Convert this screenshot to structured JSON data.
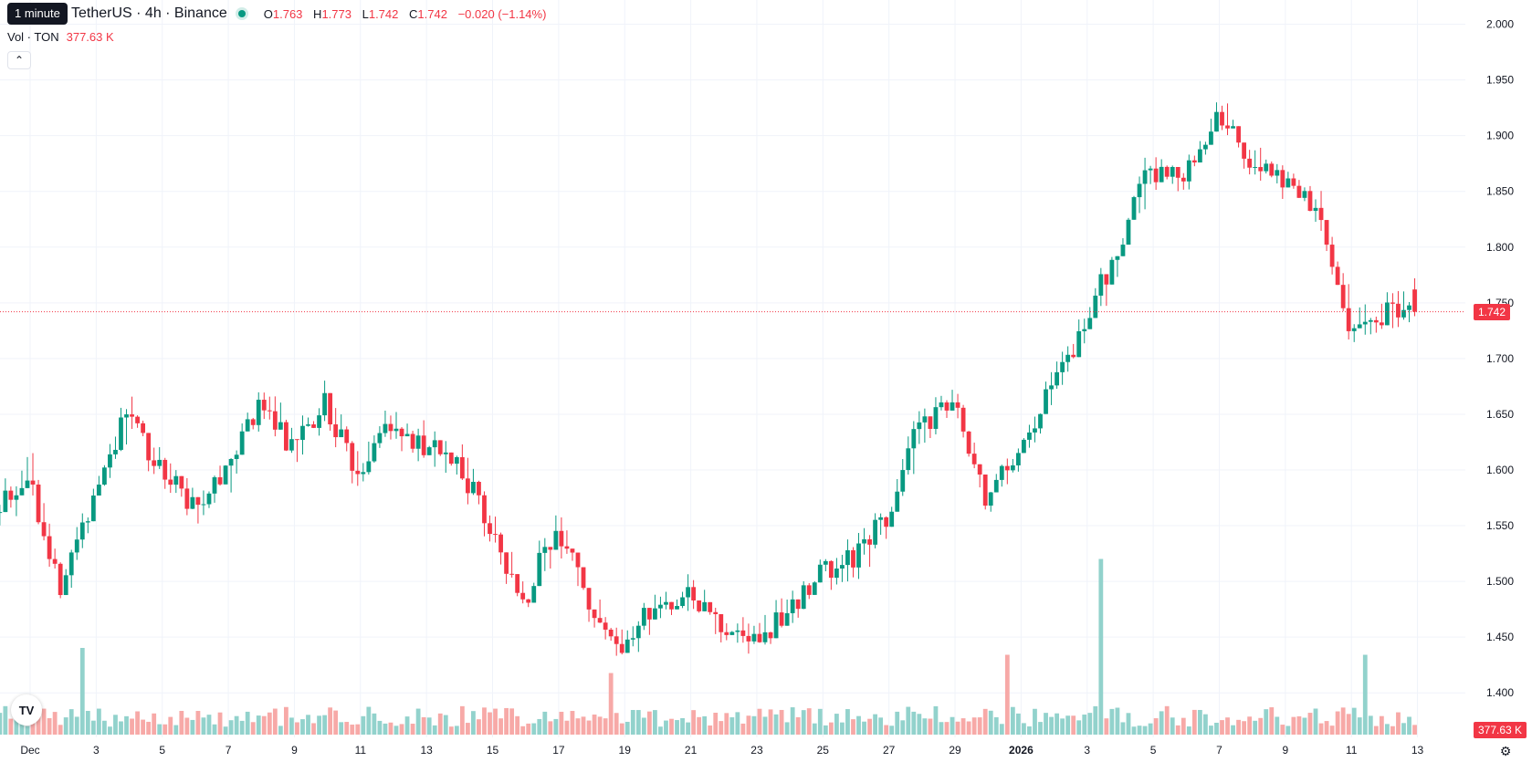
{
  "legend": {
    "tooltip": "1 minute",
    "symbol": "TetherUS · 4h · Binance",
    "ohlc": {
      "o_label": "O",
      "o": "1.763",
      "h_label": "H",
      "h": "1.773",
      "l_label": "L",
      "l": "1.742",
      "c_label": "C",
      "c": "1.742",
      "change": "−0.020 (−1.14%)"
    },
    "volume_label": "Vol · TON",
    "volume_value": "377.63 K"
  },
  "badges": {
    "last_price": "1.742",
    "last_volume": "377.63 K"
  },
  "colors": {
    "up": "#089981",
    "down": "#f23645",
    "up_volume": "#92d2cc",
    "down_volume": "#f7a9a7",
    "grid": "#f0f3fa"
  },
  "icons": {
    "collapse": "chevron-up-icon",
    "logo": "tradingview-logo-icon",
    "settings": "gear-icon"
  },
  "chart_data": {
    "type": "candlestick",
    "interval": "4h",
    "y_ticks": [
      "2.000",
      "1.950",
      "1.900",
      "1.850",
      "1.800",
      "1.750",
      "1.700",
      "1.650",
      "1.600",
      "1.550",
      "1.500",
      "1.450",
      "1.400"
    ],
    "ylim": [
      1.392,
      2.007
    ],
    "x_ticks": [
      "Dec",
      "3",
      "5",
      "7",
      "9",
      "11",
      "13",
      "15",
      "17",
      "19",
      "21",
      "23",
      "25",
      "27",
      "29",
      "2026",
      "3",
      "5",
      "7",
      "9",
      "11",
      "13"
    ],
    "last_price": 1.742,
    "daily_path": [
      {
        "date": "Nov 30",
        "close": 1.56
      },
      {
        "date": "Dec 1",
        "close": 1.6
      },
      {
        "date": "Dec 2",
        "close": 1.49
      },
      {
        "date": "Dec 3",
        "close": 1.58
      },
      {
        "date": "Dec 4",
        "close": 1.65
      },
      {
        "date": "Dec 5",
        "close": 1.6
      },
      {
        "date": "Dec 6",
        "close": 1.57
      },
      {
        "date": "Dec 7",
        "close": 1.6
      },
      {
        "date": "Dec 8",
        "close": 1.66
      },
      {
        "date": "Dec 9",
        "close": 1.62
      },
      {
        "date": "Dec 10",
        "close": 1.66
      },
      {
        "date": "Dec 11",
        "close": 1.6
      },
      {
        "date": "Dec 12",
        "close": 1.64
      },
      {
        "date": "Dec 13",
        "close": 1.62
      },
      {
        "date": "Dec 14",
        "close": 1.61
      },
      {
        "date": "Dec 15",
        "close": 1.55
      },
      {
        "date": "Dec 16",
        "close": 1.48
      },
      {
        "date": "Dec 17",
        "close": 1.55
      },
      {
        "date": "Dec 18",
        "close": 1.48
      },
      {
        "date": "Dec 19",
        "close": 1.44
      },
      {
        "date": "Dec 20",
        "close": 1.48
      },
      {
        "date": "Dec 21",
        "close": 1.49
      },
      {
        "date": "Dec 22",
        "close": 1.46
      },
      {
        "date": "Dec 23",
        "close": 1.45
      },
      {
        "date": "Dec 24",
        "close": 1.47
      },
      {
        "date": "Dec 25",
        "close": 1.51
      },
      {
        "date": "Dec 26",
        "close": 1.52
      },
      {
        "date": "Dec 27",
        "close": 1.56
      },
      {
        "date": "Dec 28",
        "close": 1.64
      },
      {
        "date": "Dec 29",
        "close": 1.66
      },
      {
        "date": "Dec 30",
        "close": 1.57
      },
      {
        "date": "Dec 31",
        "close": 1.62
      },
      {
        "date": "Jan 1",
        "close": 1.67
      },
      {
        "date": "Jan 2",
        "close": 1.73
      },
      {
        "date": "Jan 3",
        "close": 1.8
      },
      {
        "date": "Jan 4",
        "close": 1.87
      },
      {
        "date": "Jan 5",
        "close": 1.86
      },
      {
        "date": "Jan 6",
        "close": 1.92
      },
      {
        "date": "Jan 7",
        "close": 1.88
      },
      {
        "date": "Jan 8",
        "close": 1.86
      },
      {
        "date": "Jan 9",
        "close": 1.83
      },
      {
        "date": "Jan 10",
        "close": 1.73
      },
      {
        "date": "Jan 11",
        "close": 1.74
      },
      {
        "date": "Jan 12",
        "close": 1.742
      }
    ],
    "volume_spikes": [
      {
        "date": "Dec 2",
        "volume": 380
      },
      {
        "date": "Jan 2",
        "volume": 770
      },
      {
        "date": "Dec 30",
        "volume": 350
      },
      {
        "date": "Jan 10",
        "volume": 350
      },
      {
        "date": "Dec 18",
        "volume": 270
      }
    ]
  }
}
